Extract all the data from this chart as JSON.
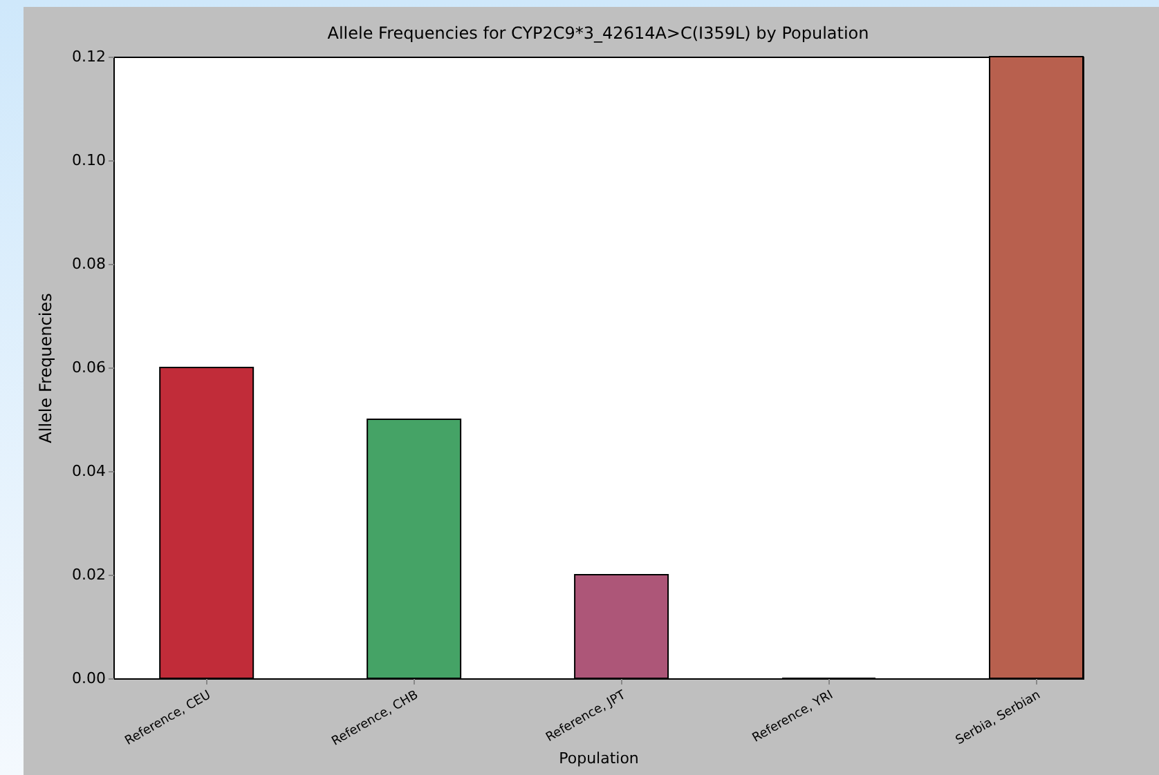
{
  "chart_data": {
    "type": "bar",
    "title": "Allele Frequencies for CYP2C9*3_42614A>C(I359L) by Population",
    "xlabel": "Population",
    "ylabel": "Allele Frequencies",
    "categories": [
      "Reference, CEU",
      "Reference, CHB",
      "Reference, JPT",
      "Reference, YRI",
      "Serbia, Serbian"
    ],
    "values": [
      0.06,
      0.05,
      0.02,
      0,
      0.12
    ],
    "colors": [
      "#c12c39",
      "#45a366",
      "#ad5678",
      "#000000",
      "#b8604e"
    ],
    "ylim": [
      0,
      0.12
    ],
    "yticks": [
      {
        "value": 0,
        "label": "0.00"
      },
      {
        "value": 0.02,
        "label": "0.02"
      },
      {
        "value": 0.04,
        "label": "0.04"
      },
      {
        "value": 0.06,
        "label": "0.06"
      },
      {
        "value": 0.08,
        "label": "0.08"
      },
      {
        "value": 0.1,
        "label": "0.10"
      },
      {
        "value": 0.12,
        "label": "0.12"
      }
    ],
    "grid": false
  }
}
